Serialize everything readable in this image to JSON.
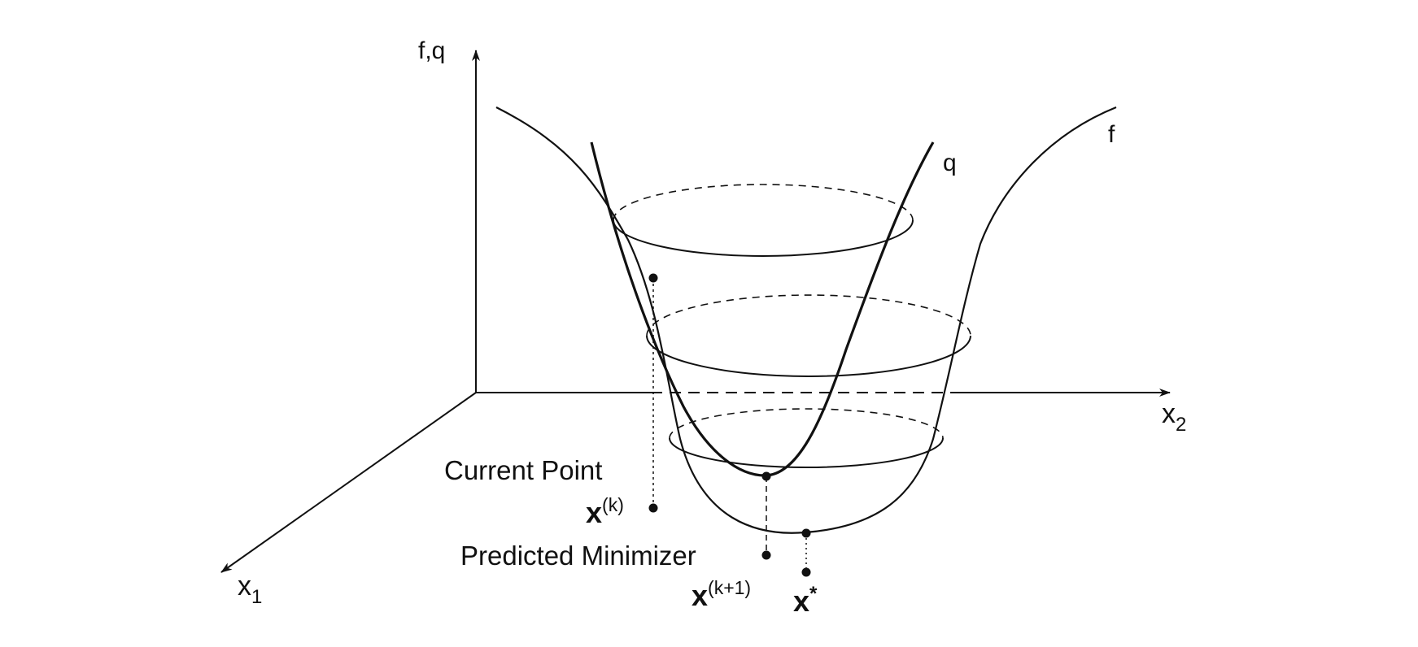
{
  "axes": {
    "vertical_label": "f,q",
    "x1_label": "x",
    "x1_subscript": "1",
    "x2_label": "x",
    "x2_subscript": "2"
  },
  "curves": {
    "f_label": "f",
    "q_label": "q"
  },
  "points": {
    "current_caption": "Current Point",
    "current_symbol": "x",
    "current_superscript": "(k)",
    "predicted_caption": "Predicted Minimizer",
    "predicted_symbol": "x",
    "predicted_superscript": "(k+1)",
    "optimum_symbol": "x",
    "optimum_superscript": "*"
  },
  "colors": {
    "ink": "#111111",
    "background": "#ffffff"
  }
}
